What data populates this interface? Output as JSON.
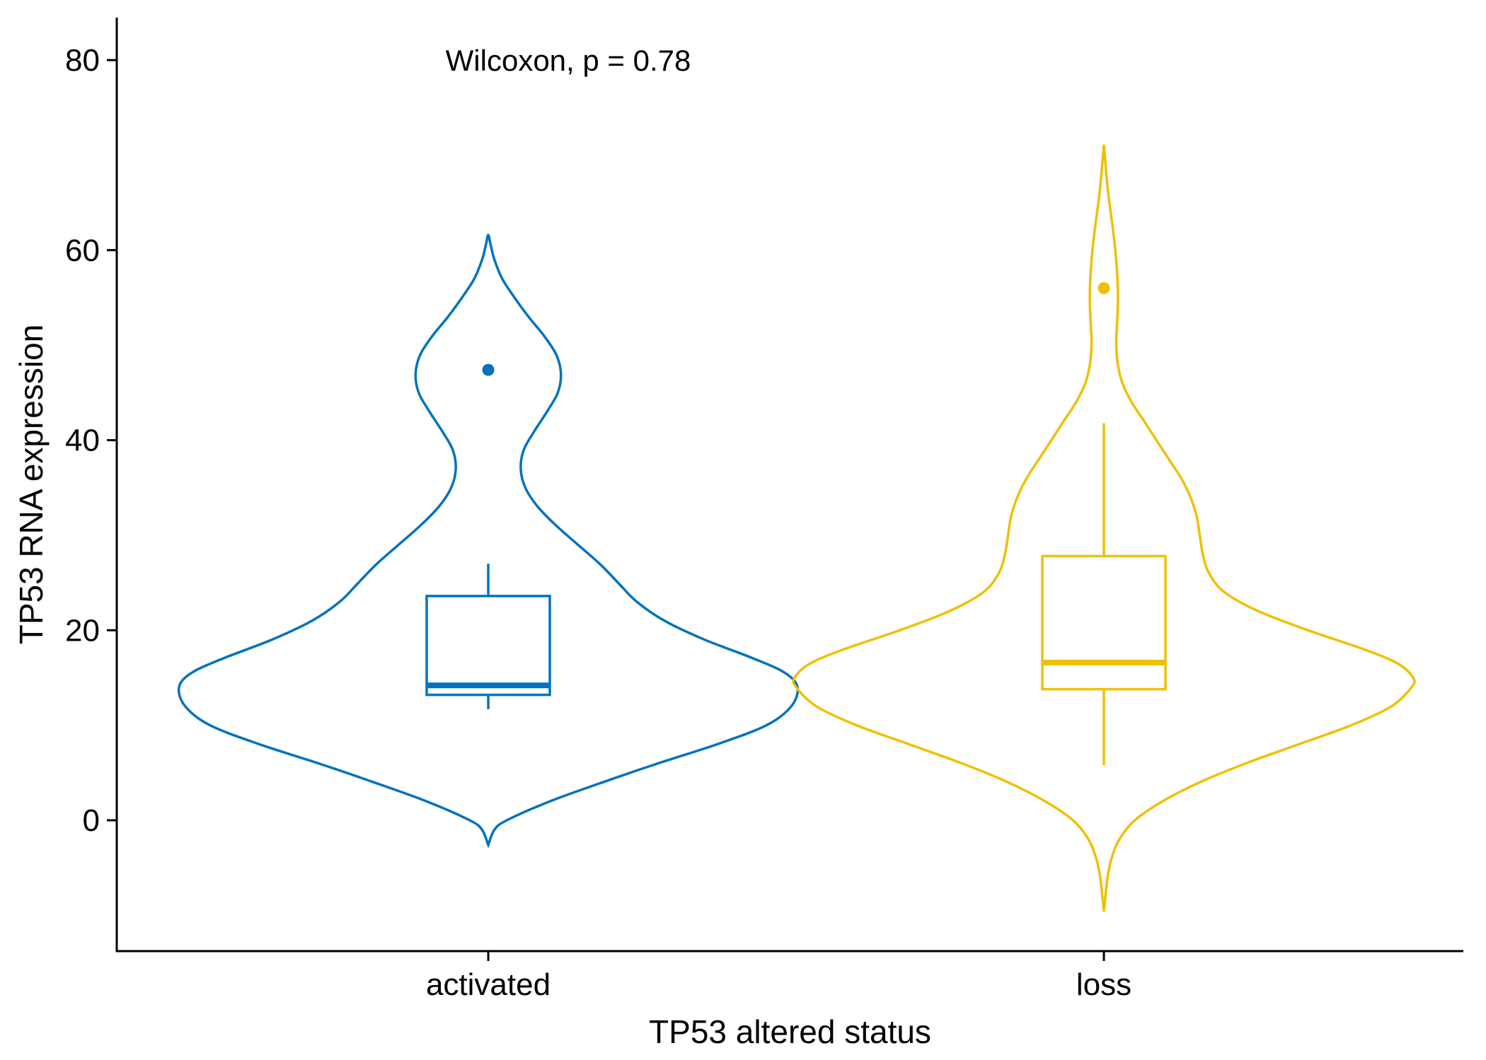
{
  "chart_data": {
    "type": "violin",
    "title": "",
    "xlabel": "TP53 altered status",
    "ylabel": "TP53 RNA expression",
    "ylim": [
      -14,
      85
    ],
    "y_ticks": [
      0,
      20,
      40,
      60,
      80
    ],
    "y_tick_labels": [
      "0",
      "20",
      "40",
      "60",
      "80"
    ],
    "grid": false,
    "legend": "none",
    "annotation": {
      "text": "Wilcoxon, p = 0.78",
      "y": 80
    },
    "categories": [
      "activated",
      "loss"
    ],
    "groups": [
      {
        "category": "activated",
        "color": "#0072BD",
        "violin_range": [
          -2.6,
          61.6
        ],
        "violin_profile": [
          [
            -2.6,
            0.0
          ],
          [
            -1.0,
            0.02
          ],
          [
            0.0,
            0.06
          ],
          [
            2.0,
            0.2
          ],
          [
            4.0,
            0.37
          ],
          [
            6.0,
            0.55
          ],
          [
            8.0,
            0.74
          ],
          [
            10.0,
            0.9
          ],
          [
            12.0,
            0.98
          ],
          [
            14.0,
            1.0
          ],
          [
            15.5,
            0.96
          ],
          [
            17.0,
            0.86
          ],
          [
            19.0,
            0.7
          ],
          [
            21.0,
            0.57
          ],
          [
            23.0,
            0.48
          ],
          [
            25.0,
            0.42
          ],
          [
            27.0,
            0.36
          ],
          [
            29.0,
            0.29
          ],
          [
            31.0,
            0.22
          ],
          [
            33.0,
            0.16
          ],
          [
            35.0,
            0.12
          ],
          [
            37.0,
            0.105
          ],
          [
            39.0,
            0.115
          ],
          [
            41.0,
            0.15
          ],
          [
            43.0,
            0.19
          ],
          [
            45.0,
            0.225
          ],
          [
            47.0,
            0.235
          ],
          [
            49.0,
            0.22
          ],
          [
            51.0,
            0.18
          ],
          [
            53.0,
            0.13
          ],
          [
            55.0,
            0.085
          ],
          [
            57.0,
            0.045
          ],
          [
            59.0,
            0.02
          ],
          [
            60.5,
            0.008
          ],
          [
            61.6,
            0.0
          ]
        ],
        "box": {
          "lower_whisker": 11.7,
          "q1": 13.2,
          "median": 14.2,
          "q3": 23.6,
          "upper_whisker": 27.0
        },
        "outliers": [
          47.4
        ]
      },
      {
        "category": "loss",
        "color": "#EFC000",
        "violin_range": [
          -9.6,
          71.0
        ],
        "violin_profile": [
          [
            -9.6,
            0.0
          ],
          [
            -8.0,
            0.005
          ],
          [
            -6.0,
            0.012
          ],
          [
            -4.0,
            0.025
          ],
          [
            -2.0,
            0.05
          ],
          [
            0.0,
            0.1
          ],
          [
            2.0,
            0.19
          ],
          [
            4.0,
            0.31
          ],
          [
            6.0,
            0.46
          ],
          [
            8.0,
            0.63
          ],
          [
            10.0,
            0.8
          ],
          [
            12.0,
            0.93
          ],
          [
            14.0,
            0.995
          ],
          [
            15.0,
            1.0
          ],
          [
            16.5,
            0.95
          ],
          [
            18.0,
            0.84
          ],
          [
            20.0,
            0.66
          ],
          [
            22.0,
            0.5
          ],
          [
            24.0,
            0.39
          ],
          [
            26.0,
            0.34
          ],
          [
            28.0,
            0.32
          ],
          [
            30.0,
            0.31
          ],
          [
            32.0,
            0.3
          ],
          [
            34.0,
            0.28
          ],
          [
            36.0,
            0.25
          ],
          [
            38.0,
            0.21
          ],
          [
            40.0,
            0.17
          ],
          [
            42.0,
            0.13
          ],
          [
            44.0,
            0.09
          ],
          [
            46.0,
            0.06
          ],
          [
            48.0,
            0.045
          ],
          [
            50.0,
            0.04
          ],
          [
            52.0,
            0.042
          ],
          [
            54.0,
            0.045
          ],
          [
            56.0,
            0.045
          ],
          [
            58.0,
            0.042
          ],
          [
            60.0,
            0.037
          ],
          [
            62.0,
            0.03
          ],
          [
            64.0,
            0.022
          ],
          [
            66.0,
            0.014
          ],
          [
            68.0,
            0.008
          ],
          [
            70.0,
            0.003
          ],
          [
            71.0,
            0.0
          ]
        ],
        "box": {
          "lower_whisker": 5.8,
          "q1": 13.8,
          "median": 16.6,
          "q3": 27.8,
          "upper_whisker": 41.8
        },
        "outliers": [
          56.0
        ]
      }
    ]
  }
}
